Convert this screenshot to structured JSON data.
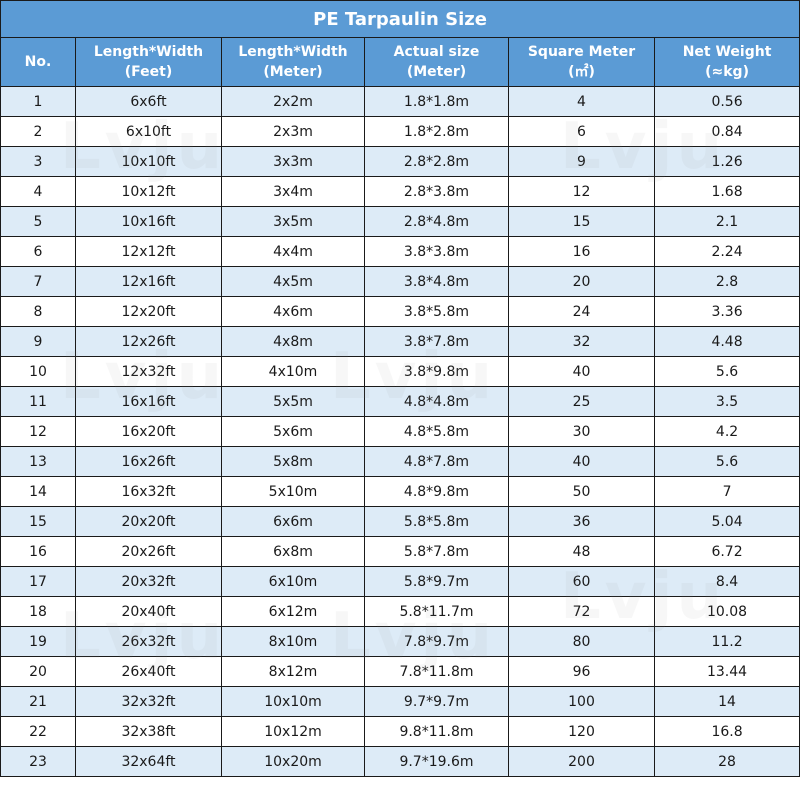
{
  "title": "PE Tarpaulin Size",
  "headers": [
    [
      "No."
    ],
    [
      "Length*Width",
      "(Feet)"
    ],
    [
      "Length*Width",
      "(Meter)"
    ],
    [
      "Actual size",
      "(Meter)"
    ],
    [
      "Square Meter",
      "(㎡)"
    ],
    [
      "Net Weight",
      "(≈kg)"
    ]
  ],
  "rows": [
    [
      "1",
      "6x6ft",
      "2x2m",
      "1.8*1.8m",
      "4",
      "0.56"
    ],
    [
      "2",
      "6x10ft",
      "2x3m",
      "1.8*2.8m",
      "6",
      "0.84"
    ],
    [
      "3",
      "10x10ft",
      "3x3m",
      "2.8*2.8m",
      "9",
      "1.26"
    ],
    [
      "4",
      "10x12ft",
      "3x4m",
      "2.8*3.8m",
      "12",
      "1.68"
    ],
    [
      "5",
      "10x16ft",
      "3x5m",
      "2.8*4.8m",
      "15",
      "2.1"
    ],
    [
      "6",
      "12x12ft",
      "4x4m",
      "3.8*3.8m",
      "16",
      "2.24"
    ],
    [
      "7",
      "12x16ft",
      "4x5m",
      "3.8*4.8m",
      "20",
      "2.8"
    ],
    [
      "8",
      "12x20ft",
      "4x6m",
      "3.8*5.8m",
      "24",
      "3.36"
    ],
    [
      "9",
      "12x26ft",
      "4x8m",
      "3.8*7.8m",
      "32",
      "4.48"
    ],
    [
      "10",
      "12x32ft",
      "4x10m",
      "3.8*9.8m",
      "40",
      "5.6"
    ],
    [
      "11",
      "16x16ft",
      "5x5m",
      "4.8*4.8m",
      "25",
      "3.5"
    ],
    [
      "12",
      "16x20ft",
      "5x6m",
      "4.8*5.8m",
      "30",
      "4.2"
    ],
    [
      "13",
      "16x26ft",
      "5x8m",
      "4.8*7.8m",
      "40",
      "5.6"
    ],
    [
      "14",
      "16x32ft",
      "5x10m",
      "4.8*9.8m",
      "50",
      "7"
    ],
    [
      "15",
      "20x20ft",
      "6x6m",
      "5.8*5.8m",
      "36",
      "5.04"
    ],
    [
      "16",
      "20x26ft",
      "6x8m",
      "5.8*7.8m",
      "48",
      "6.72"
    ],
    [
      "17",
      "20x32ft",
      "6x10m",
      "5.8*9.7m",
      "60",
      "8.4"
    ],
    [
      "18",
      "20x40ft",
      "6x12m",
      "5.8*11.7m",
      "72",
      "10.08"
    ],
    [
      "19",
      "26x32ft",
      "8x10m",
      "7.8*9.7m",
      "80",
      "11.2"
    ],
    [
      "20",
      "26x40ft",
      "8x12m",
      "7.8*11.8m",
      "96",
      "13.44"
    ],
    [
      "21",
      "32x32ft",
      "10x10m",
      "9.7*9.7m",
      "100",
      "14"
    ],
    [
      "22",
      "32x38ft",
      "10x12m",
      "9.8*11.8m",
      "120",
      "16.8"
    ],
    [
      "23",
      "32x64ft",
      "10x20m",
      "9.7*19.6m",
      "200",
      "28"
    ]
  ],
  "watermark": "Lvju",
  "colors": {
    "header_bg": "#5b9bd5",
    "band_bg": "#ddebf7",
    "border": "#1a1a1a"
  }
}
